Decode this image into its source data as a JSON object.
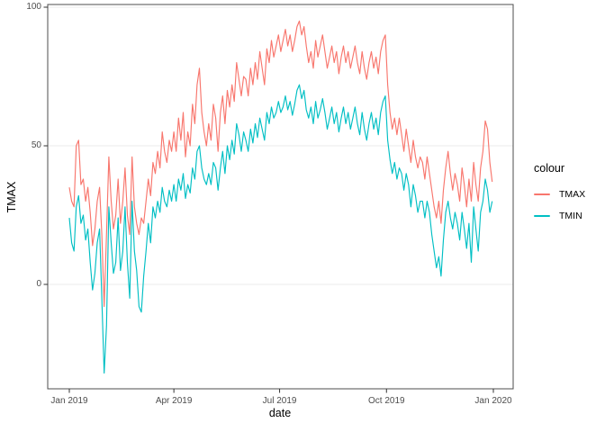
{
  "figure": {
    "y_axis": {
      "title": "TMAX",
      "tick_labels": [
        "100",
        "50",
        "0"
      ],
      "tick_values": [
        100,
        50,
        0
      ]
    },
    "x_axis": {
      "title": "date",
      "tick_labels": [
        "Jan 2019",
        "Apr 2019",
        "Jul 2019",
        "Oct 2019",
        "Jan 2020"
      ],
      "tick_days": [
        0,
        90,
        181,
        273,
        365
      ]
    },
    "legend": {
      "title": "colour",
      "items": [
        {
          "label": "TMAX",
          "color": "#F8766D"
        },
        {
          "label": "TMIN",
          "color": "#00BFC4"
        }
      ]
    }
  },
  "chart_data": {
    "type": "line",
    "title": "",
    "xlabel": "date",
    "ylabel": "TMAX",
    "legend_title": "colour",
    "legend_position": "right",
    "grid": "horizontal-major-only",
    "x_domain_days": [
      0,
      365
    ],
    "x_tick_labels": [
      "Jan 2019",
      "Apr 2019",
      "Jul 2019",
      "Oct 2019",
      "Jan 2020"
    ],
    "x_tick_days": [
      0,
      90,
      181,
      273,
      365
    ],
    "y_ticks": [
      0,
      50,
      100
    ],
    "ylim": [
      -39,
      101
    ],
    "sampling_note": "daily 2019 temperature traces estimated from plot, sampled every 2 days; day 0 = Jan 1 2019",
    "x_start_day": 0,
    "x_step_days": 2,
    "series": [
      {
        "name": "TMAX",
        "color": "#F8766D",
        "values": [
          35,
          30,
          28,
          50,
          52,
          36,
          38,
          30,
          35,
          26,
          14,
          20,
          30,
          35,
          18,
          -8,
          18,
          46,
          30,
          20,
          25,
          38,
          22,
          30,
          42,
          25,
          18,
          46,
          28,
          22,
          18,
          24,
          22,
          30,
          38,
          32,
          44,
          40,
          48,
          42,
          55,
          48,
          44,
          52,
          48,
          55,
          48,
          60,
          52,
          62,
          46,
          55,
          50,
          65,
          58,
          72,
          78,
          62,
          55,
          50,
          58,
          52,
          65,
          60,
          48,
          62,
          68,
          58,
          70,
          64,
          72,
          66,
          80,
          74,
          68,
          75,
          74,
          68,
          78,
          72,
          80,
          74,
          84,
          78,
          72,
          85,
          80,
          88,
          82,
          86,
          90,
          84,
          88,
          92,
          86,
          90,
          84,
          88,
          93,
          95,
          90,
          93,
          86,
          80,
          84,
          78,
          88,
          82,
          86,
          90,
          84,
          78,
          82,
          86,
          80,
          84,
          76,
          82,
          86,
          80,
          84,
          78,
          82,
          86,
          80,
          76,
          84,
          78,
          74,
          80,
          84,
          78,
          82,
          76,
          84,
          88,
          90,
          72,
          62,
          56,
          60,
          54,
          60,
          54,
          48,
          56,
          50,
          44,
          52,
          46,
          42,
          46,
          44,
          38,
          46,
          40,
          34,
          28,
          24,
          30,
          22,
          34,
          42,
          48,
          40,
          34,
          40,
          36,
          30,
          42,
          36,
          28,
          38,
          30,
          44,
          36,
          30,
          42,
          48,
          59,
          56,
          44,
          37
        ]
      },
      {
        "name": "TMIN",
        "color": "#00BFC4",
        "values": [
          24,
          15,
          12,
          28,
          32,
          22,
          25,
          16,
          20,
          8,
          -2,
          4,
          15,
          20,
          -5,
          -32,
          -15,
          28,
          15,
          4,
          8,
          24,
          5,
          12,
          28,
          8,
          -5,
          30,
          12,
          5,
          -8,
          -10,
          3,
          12,
          22,
          15,
          28,
          24,
          30,
          26,
          35,
          30,
          28,
          34,
          30,
          36,
          30,
          38,
          34,
          40,
          31,
          36,
          33,
          42,
          38,
          48,
          50,
          42,
          38,
          36,
          40,
          36,
          44,
          42,
          34,
          42,
          48,
          40,
          50,
          45,
          52,
          47,
          58,
          54,
          48,
          55,
          52,
          48,
          56,
          51,
          58,
          53,
          60,
          56,
          52,
          62,
          58,
          64,
          60,
          62,
          66,
          62,
          64,
          68,
          63,
          66,
          61,
          65,
          70,
          72,
          67,
          70,
          63,
          60,
          64,
          58,
          66,
          60,
          63,
          67,
          62,
          56,
          60,
          64,
          58,
          62,
          55,
          60,
          64,
          58,
          62,
          56,
          60,
          64,
          58,
          54,
          62,
          56,
          52,
          58,
          62,
          56,
          60,
          54,
          62,
          66,
          68,
          52,
          45,
          40,
          44,
          38,
          42,
          40,
          34,
          40,
          36,
          28,
          36,
          32,
          26,
          30,
          30,
          24,
          30,
          26,
          18,
          12,
          6,
          10,
          3,
          16,
          26,
          30,
          24,
          20,
          26,
          22,
          16,
          26,
          20,
          13,
          22,
          8,
          28,
          20,
          12,
          26,
          30,
          38,
          34,
          26,
          30
        ]
      }
    ]
  }
}
